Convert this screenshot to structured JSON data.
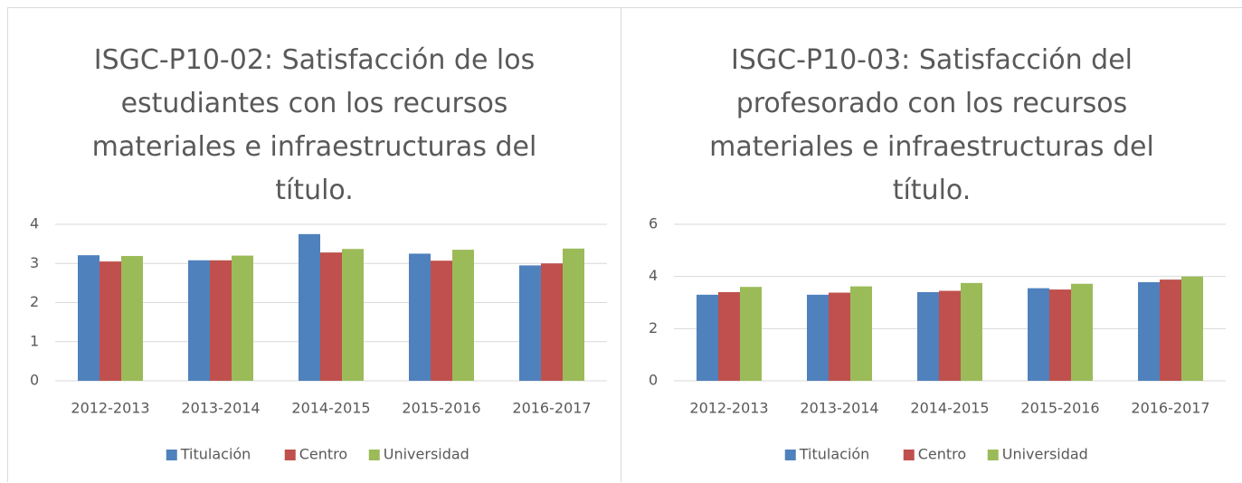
{
  "chart_data": [
    {
      "type": "bar",
      "title": "ISGC-P10-02: Satisfacción de los estudiantes con los recursos materiales e infraestructuras del título.",
      "categories": [
        "2012-2013",
        "2013-2014",
        "2014-2015",
        "2015-2016",
        "2016-2017"
      ],
      "series": [
        {
          "name": "Titulación",
          "color": "#4f81bd",
          "values": [
            3.21,
            3.08,
            3.75,
            3.25,
            2.95
          ]
        },
        {
          "name": "Centro",
          "color": "#c0504d",
          "values": [
            3.05,
            3.08,
            3.28,
            3.07,
            3.0
          ]
        },
        {
          "name": "Universidad",
          "color": "#9bbb59",
          "values": [
            3.19,
            3.2,
            3.37,
            3.35,
            3.38
          ]
        }
      ],
      "ylim": [
        0,
        4
      ],
      "yticks": [
        0,
        1,
        2,
        3,
        4
      ],
      "grid": true,
      "legend": "bottom"
    },
    {
      "type": "bar",
      "title": "ISGC-P10-03: Satisfacción del profesorado con los recursos materiales e infraestructuras del título.",
      "categories": [
        "2012-2013",
        "2013-2014",
        "2014-2015",
        "2015-2016",
        "2016-2017"
      ],
      "series": [
        {
          "name": "Titulación",
          "color": "#4f81bd",
          "values": [
            3.3,
            3.3,
            3.4,
            3.55,
            3.78
          ]
        },
        {
          "name": "Centro",
          "color": "#c0504d",
          "values": [
            3.4,
            3.38,
            3.45,
            3.5,
            3.88
          ]
        },
        {
          "name": "Universidad",
          "color": "#9bbb59",
          "values": [
            3.6,
            3.62,
            3.75,
            3.72,
            4.0
          ]
        }
      ],
      "ylim": [
        0,
        6
      ],
      "yticks": [
        0,
        2,
        4,
        6
      ],
      "grid": true,
      "legend": "bottom"
    }
  ]
}
